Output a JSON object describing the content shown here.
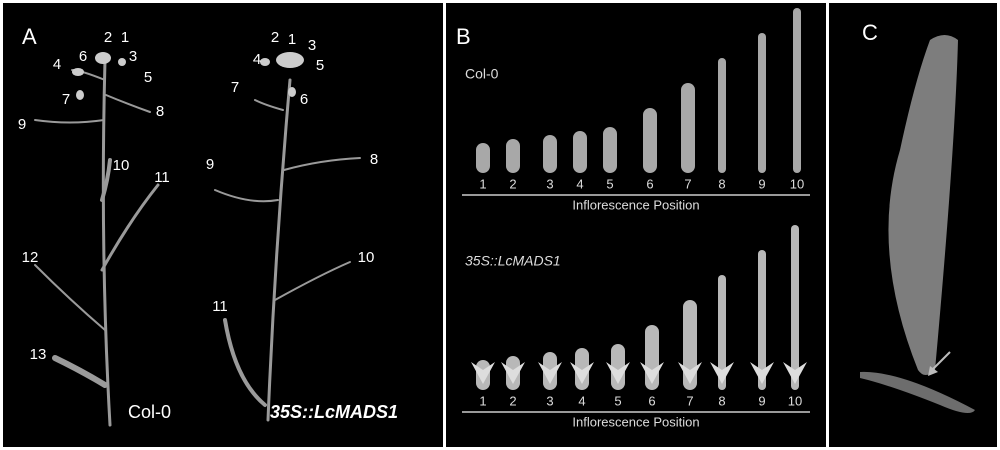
{
  "panel_a": {
    "label": "A",
    "plants": [
      {
        "name": "Col-0",
        "numbers": [
          "2",
          "1",
          "6",
          "3",
          "4",
          "5",
          "7",
          "8",
          "9",
          "10",
          "11",
          "12",
          "13"
        ]
      },
      {
        "name": "35S::LcMADS1",
        "numbers": [
          "2",
          "1",
          "3",
          "4",
          "5",
          "7",
          "6",
          "8",
          "9",
          "10",
          "11"
        ]
      }
    ]
  },
  "panel_b": {
    "label": "B",
    "rows": [
      {
        "name": "Col-0",
        "positions": [
          "1",
          "2",
          "3",
          "4",
          "5",
          "6",
          "7",
          "8",
          "9",
          "10"
        ],
        "axis_label": "Inflorescence Position"
      },
      {
        "name": "35S::LcMADS1",
        "positions": [
          "1",
          "2",
          "3",
          "4",
          "5",
          "6",
          "7",
          "8",
          "9",
          "10"
        ],
        "axis_label": "Inflorescence Position"
      }
    ]
  },
  "panel_c": {
    "label": "C"
  }
}
